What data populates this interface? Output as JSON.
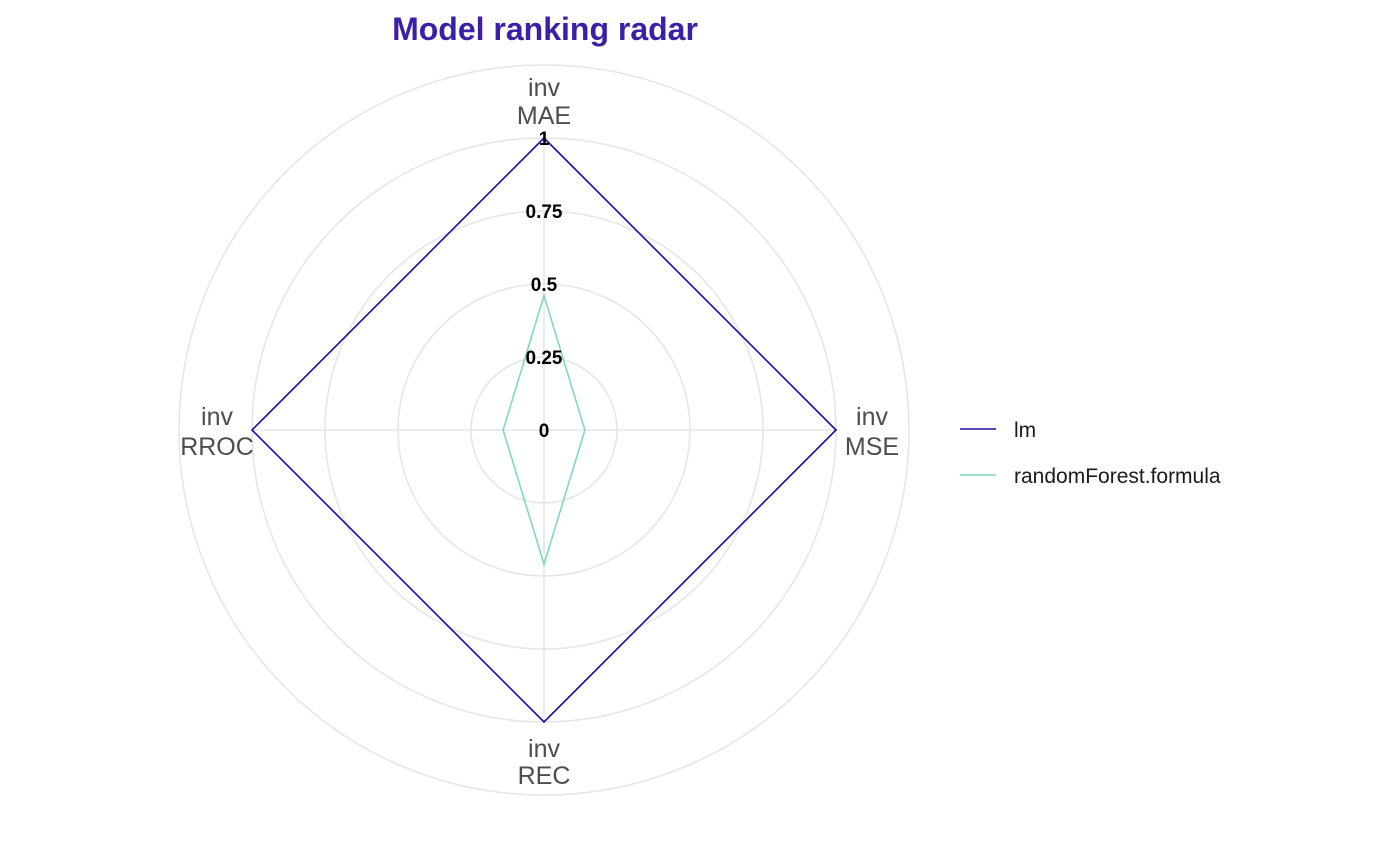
{
  "colors": {
    "title": "#3A1FA8",
    "grid": "#E6E6E6",
    "axis_text": "#4D4D4D"
  },
  "chart_data": {
    "type": "radar",
    "title": "Model ranking radar",
    "axes": [
      {
        "line1": "inv",
        "line2": "MAE"
      },
      {
        "line1": "inv",
        "line2": "MSE"
      },
      {
        "line1": "inv",
        "line2": "REC"
      },
      {
        "line1": "inv",
        "line2": "RROC"
      }
    ],
    "ticks": [
      {
        "value": 0,
        "label": "0"
      },
      {
        "value": 0.25,
        "label": "0.25"
      },
      {
        "value": 0.5,
        "label": "0.5"
      },
      {
        "value": 0.75,
        "label": "0.75"
      },
      {
        "value": 1,
        "label": "1"
      }
    ],
    "range": [
      0,
      1
    ],
    "legend_position": "right",
    "series": [
      {
        "name": "lm",
        "color": "#1E0AA8",
        "values": [
          1,
          1,
          1,
          1
        ]
      },
      {
        "name": "randomForest.formula",
        "color": "#7FD8C0",
        "values": [
          0.46,
          0.14,
          0.46,
          0.14
        ]
      }
    ]
  }
}
